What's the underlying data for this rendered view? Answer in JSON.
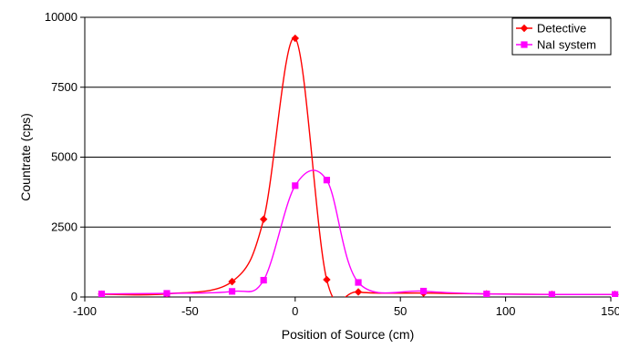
{
  "chart_data": {
    "type": "line",
    "title": "",
    "xlabel": "Position of Source (cm)",
    "ylabel": "Countrate (cps)",
    "xlim": [
      -100,
      150
    ],
    "ylim": [
      0,
      10000
    ],
    "x_ticks": [
      -100,
      -50,
      0,
      50,
      100,
      150
    ],
    "x_tick_labels": [
      "-100",
      "-50",
      "0",
      "50",
      "100",
      "150"
    ],
    "y_ticks": [
      0,
      2500,
      5000,
      7500,
      10000
    ],
    "y_tick_labels": [
      "0",
      "2500",
      "5000",
      "7500",
      "10000"
    ],
    "grid": "horizontal",
    "legend_position": "top-right",
    "smooth": true,
    "series": [
      {
        "name": "Detective",
        "color": "#ff0000",
        "marker": "diamond",
        "points": [
          [
            -92,
            100
          ],
          [
            -61,
            110
          ],
          [
            -30,
            550
          ],
          [
            -15,
            2780
          ],
          [
            0,
            9250
          ],
          [
            15,
            620
          ],
          [
            30,
            180
          ],
          [
            61,
            140
          ],
          [
            91,
            110
          ],
          [
            122,
            90
          ],
          [
            152,
            90
          ]
        ]
      },
      {
        "name": "NaI system",
        "color": "#ff00ff",
        "marker": "square",
        "points": [
          [
            -92,
            110
          ],
          [
            -61,
            130
          ],
          [
            -30,
            200
          ],
          [
            -15,
            600
          ],
          [
            0,
            3980
          ],
          [
            15,
            4180
          ],
          [
            30,
            520
          ],
          [
            61,
            210
          ],
          [
            91,
            110
          ],
          [
            122,
            90
          ],
          [
            152,
            90
          ]
        ]
      }
    ]
  }
}
